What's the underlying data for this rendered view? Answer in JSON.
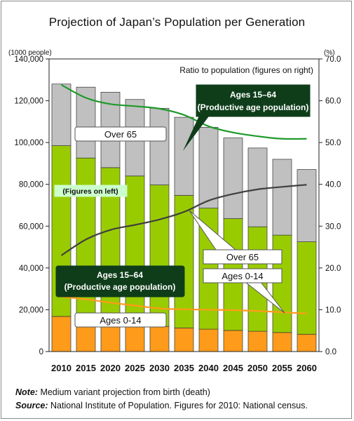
{
  "title": "Projection of Japan’s Population per Generation",
  "left_unit": "(1000 people)",
  "right_unit": "(%)",
  "right_axis_note": "Ratio to population (figures on right)",
  "figures_left_note": "(Figures on left)",
  "labels": {
    "over65_bar": "Over 65",
    "working_bar_line1": "Ages 15–64",
    "working_bar_line2": "(Productive age population)",
    "child_bar": "Ages 0-14",
    "working_ratio_line1": "Ages 15–64",
    "working_ratio_line2": "(Productive age population)",
    "over65_ratio": "Over 65",
    "child_ratio": "Ages 0-14"
  },
  "notes": {
    "note_label": "Note:",
    "note_text": "Medium variant projection from birth (death)",
    "source_label": "Source:",
    "source_text": "National Institute of Population. Figures for 2010: National census."
  },
  "colors": {
    "child": "#ff9b1a",
    "working": "#99cc00",
    "elderly": "#c0c0c0",
    "working_line": "#1f9a2a",
    "elderly_line": "#404040",
    "child_line": "#ff9b1a",
    "dark_label": "#0f3d1a"
  },
  "chart_data": {
    "type": "bar",
    "stacked": true,
    "categories": [
      "2010",
      "2015",
      "2020",
      "2025",
      "2030",
      "2035",
      "2040",
      "2045",
      "2050",
      "2055",
      "2060"
    ],
    "left_axis": {
      "ylim": [
        0,
        140000
      ],
      "ticks": [
        0,
        20000,
        40000,
        60000,
        80000,
        100000,
        120000,
        140000
      ],
      "tick_labels": [
        "0",
        "20,000",
        "40,000",
        "60,000",
        "80,000",
        "100,000",
        "120,000",
        "140,000"
      ]
    },
    "right_axis": {
      "ylim": [
        0,
        70
      ],
      "ticks": [
        0,
        10,
        20,
        30,
        40,
        50,
        60,
        70
      ],
      "tick_labels": [
        "0.0",
        "10.0",
        "20.0",
        "30.0",
        "40.0",
        "50.0",
        "60.0",
        "70.0"
      ]
    },
    "series": [
      {
        "name": "Ages 0-14",
        "axis": "left",
        "values": [
          16800,
          15800,
          14600,
          13200,
          12000,
          11300,
          10700,
          10100,
          9700,
          9100,
          8300
        ]
      },
      {
        "name": "Ages 15–64",
        "axis": "left",
        "values": [
          81700,
          76800,
          73400,
          70800,
          67700,
          63400,
          57900,
          53500,
          50000,
          46600,
          44200
        ]
      },
      {
        "name": "Over 65",
        "axis": "left",
        "values": [
          29500,
          33900,
          36100,
          36600,
          36700,
          37400,
          38700,
          38600,
          37700,
          36300,
          34600
        ]
      }
    ],
    "ratio_series": [
      {
        "name": "Ages 15–64",
        "axis": "right",
        "values": [
          63.8,
          60.7,
          59.2,
          58.7,
          58.1,
          56.6,
          53.9,
          52.4,
          51.5,
          50.9,
          50.9
        ]
      },
      {
        "name": "Over 65",
        "axis": "right",
        "values": [
          23.0,
          26.8,
          29.1,
          30.3,
          31.6,
          33.4,
          36.1,
          37.7,
          38.8,
          39.4,
          39.9
        ]
      },
      {
        "name": "Ages 0-14",
        "axis": "right",
        "values": [
          13.1,
          12.5,
          11.7,
          11.0,
          10.3,
          10.1,
          10.0,
          9.9,
          9.7,
          9.4,
          9.1
        ]
      }
    ],
    "grid": false,
    "legend": "inline labels"
  }
}
